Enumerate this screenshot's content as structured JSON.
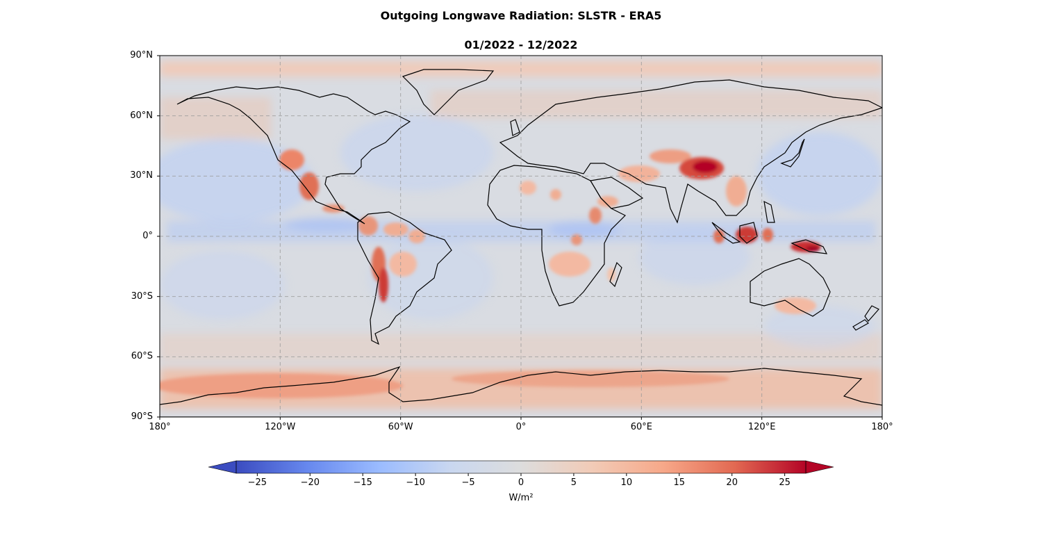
{
  "title": "Outgoing Longwave Radiation: SLSTR - ERA5",
  "subtitle": "01/2022 - 12/2022",
  "map": {
    "projection": "PlateCarree",
    "lon_range": [
      -180,
      180
    ],
    "lat_range": [
      -90,
      90
    ],
    "gridlines": true,
    "coastlines": true,
    "lat_ticks": [
      {
        "value": 90,
        "label": "90°N"
      },
      {
        "value": 60,
        "label": "60°N"
      },
      {
        "value": 30,
        "label": "30°N"
      },
      {
        "value": 0,
        "label": "0°"
      },
      {
        "value": -30,
        "label": "30°S"
      },
      {
        "value": -60,
        "label": "60°S"
      },
      {
        "value": -90,
        "label": "90°S"
      }
    ],
    "lon_ticks": [
      {
        "value": -180,
        "label": "180°"
      },
      {
        "value": -120,
        "label": "120°W"
      },
      {
        "value": -60,
        "label": "60°W"
      },
      {
        "value": 0,
        "label": "0°"
      },
      {
        "value": 60,
        "label": "60°E"
      },
      {
        "value": 120,
        "label": "120°E"
      },
      {
        "value": 180,
        "label": "180°"
      }
    ]
  },
  "colorbar": {
    "colormap": "coolwarm",
    "range": [
      -27,
      27
    ],
    "extend": "both",
    "ticks": [
      "−25",
      "−20",
      "−15",
      "−10",
      "−5",
      "0",
      "5",
      "10",
      "15",
      "20",
      "25"
    ],
    "tick_values": [
      -25,
      -20,
      -15,
      -10,
      -5,
      0,
      5,
      10,
      15,
      20,
      25
    ],
    "label": "W/m²",
    "colors": [
      "#3b4cc0",
      "#6788ee",
      "#9abbff",
      "#c9d7f0",
      "#dddddd",
      "#f2cbb7",
      "#f7a889",
      "#e26952",
      "#b40426"
    ]
  },
  "chart_data": {
    "type": "heatmap",
    "title": "Outgoing Longwave Radiation: SLSTR - ERA5",
    "subtitle": "01/2022 - 12/2022",
    "xlim": [
      -180,
      180
    ],
    "ylim": [
      -90,
      90
    ],
    "value_range": [
      -27,
      27
    ],
    "units": "W/m²"
  }
}
